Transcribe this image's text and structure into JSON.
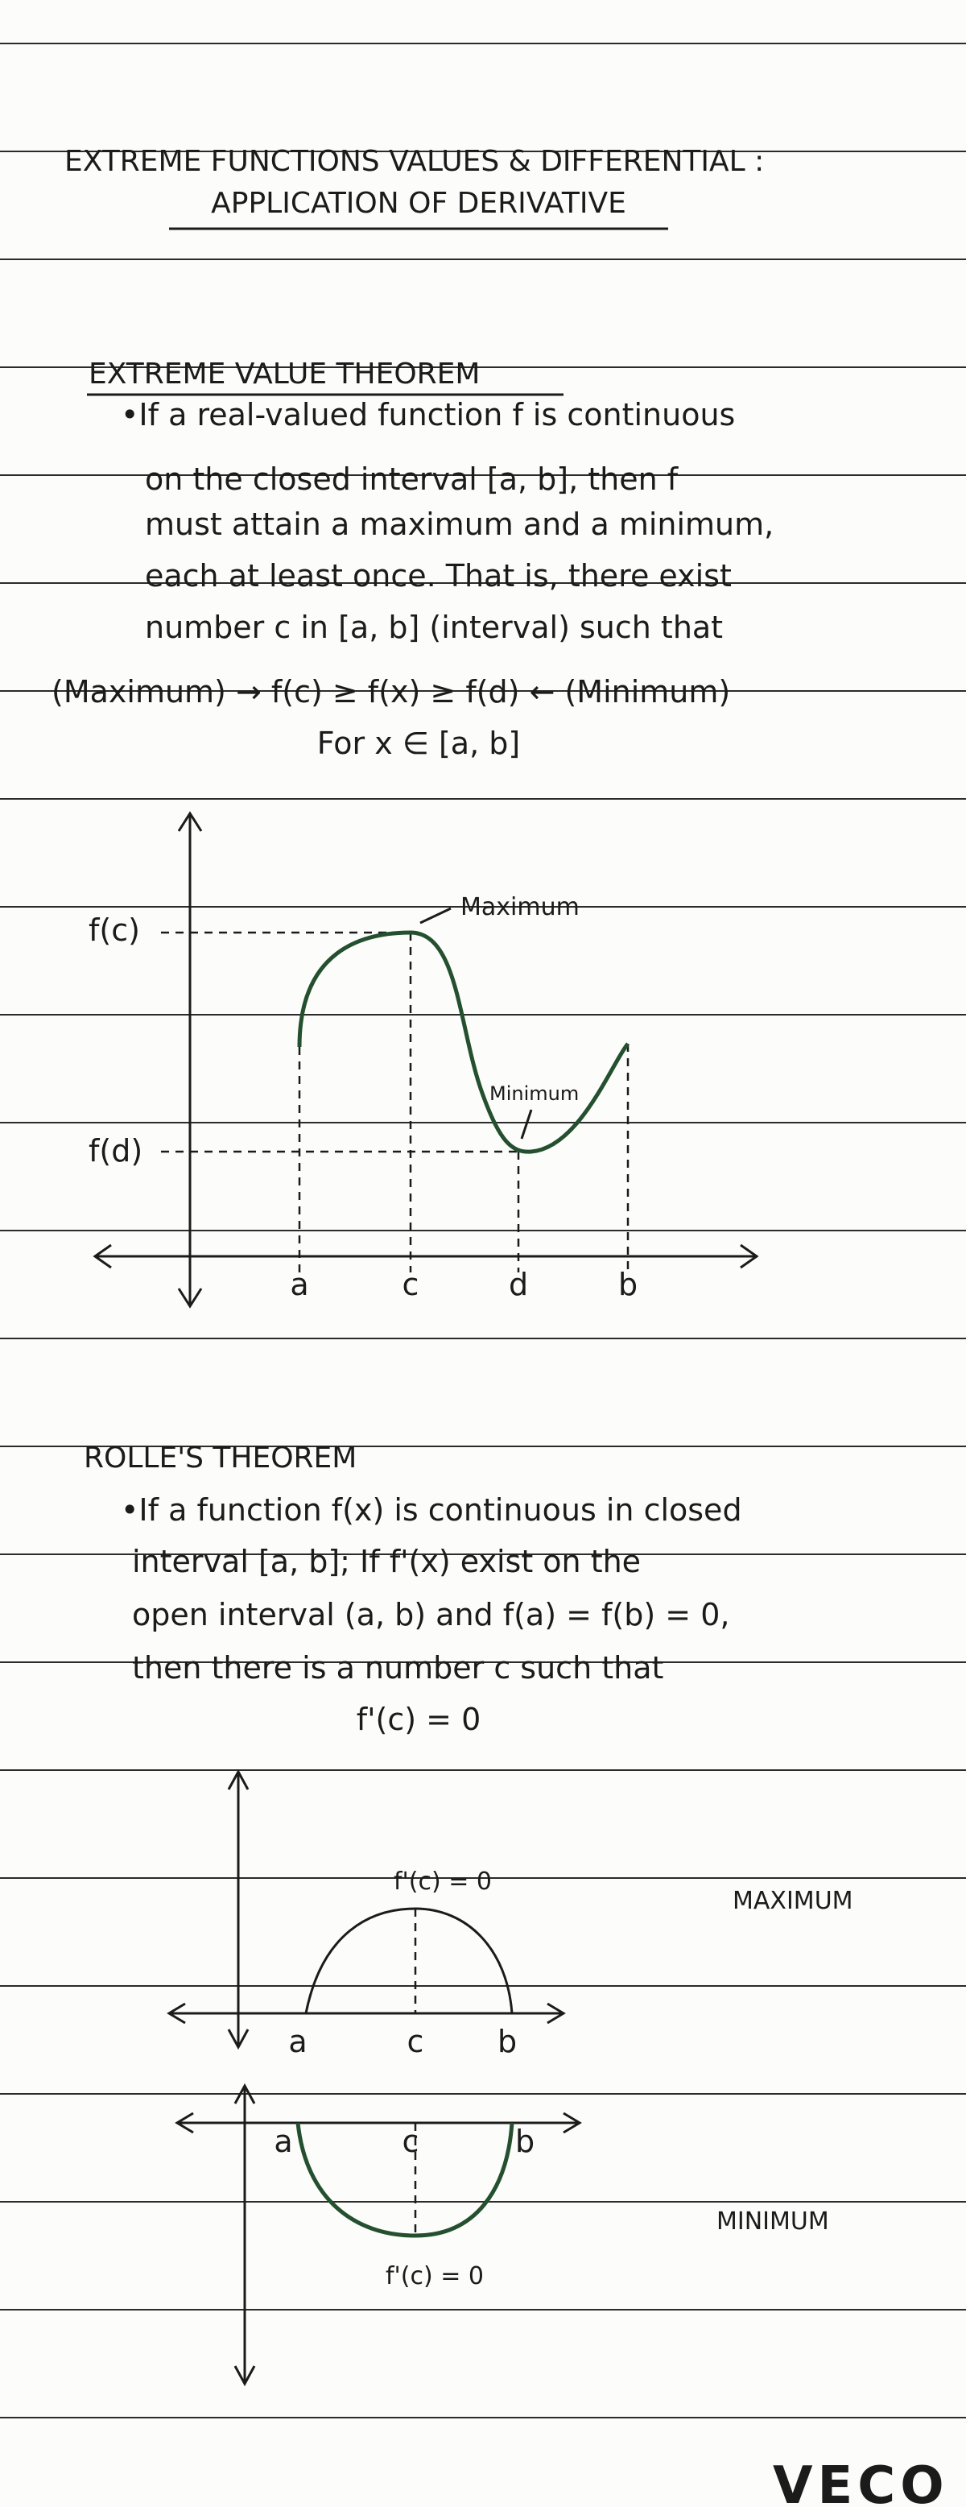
{
  "header": {
    "title": "EXTREME FUNCTIONS VALUES & DIFFERENTIAL :",
    "subtitle": "APPLICATION OF DERIVATIVE"
  },
  "sections": [
    {
      "heading": "EXTREME VALUE THEOREM",
      "lines": [
        "•If a real-valued function f is continuous",
        "on the closed interval [a, b], then f",
        "must attain a maximum and a minimum,",
        "each at least once. That is, there exist",
        "number c in [a, b] (interval) such that",
        "(Maximum) → f(c) ≥ f(x) ≥ f(d) ← (Minimum)",
        "For x ∈ [a, b]"
      ],
      "figure": {
        "f_c": "f(c)",
        "f_d": "f(d)",
        "max_label": "Maximum",
        "min_label": "Minimum",
        "x_labels": [
          "a",
          "c",
          "d",
          "b"
        ]
      }
    },
    {
      "heading": "ROLLE'S THEOREM",
      "lines": [
        "•If a function f(x) is continuous in closed",
        "interval [a, b]; If f'(x) exist on the",
        "open interval (a, b) and f(a) = f(b) = 0,",
        "then there is a number c such that",
        "f'(c) = 0"
      ],
      "figures": [
        {
          "label": "f'(c) = 0",
          "kind": "MAXIMUM",
          "x_labels": [
            "a",
            "c",
            "b"
          ]
        },
        {
          "label": "f'(c) = 0",
          "kind": "MINIMUM",
          "x_labels": [
            "a",
            "c",
            "b"
          ]
        }
      ]
    }
  ],
  "footer": {
    "brand": "VECO"
  }
}
